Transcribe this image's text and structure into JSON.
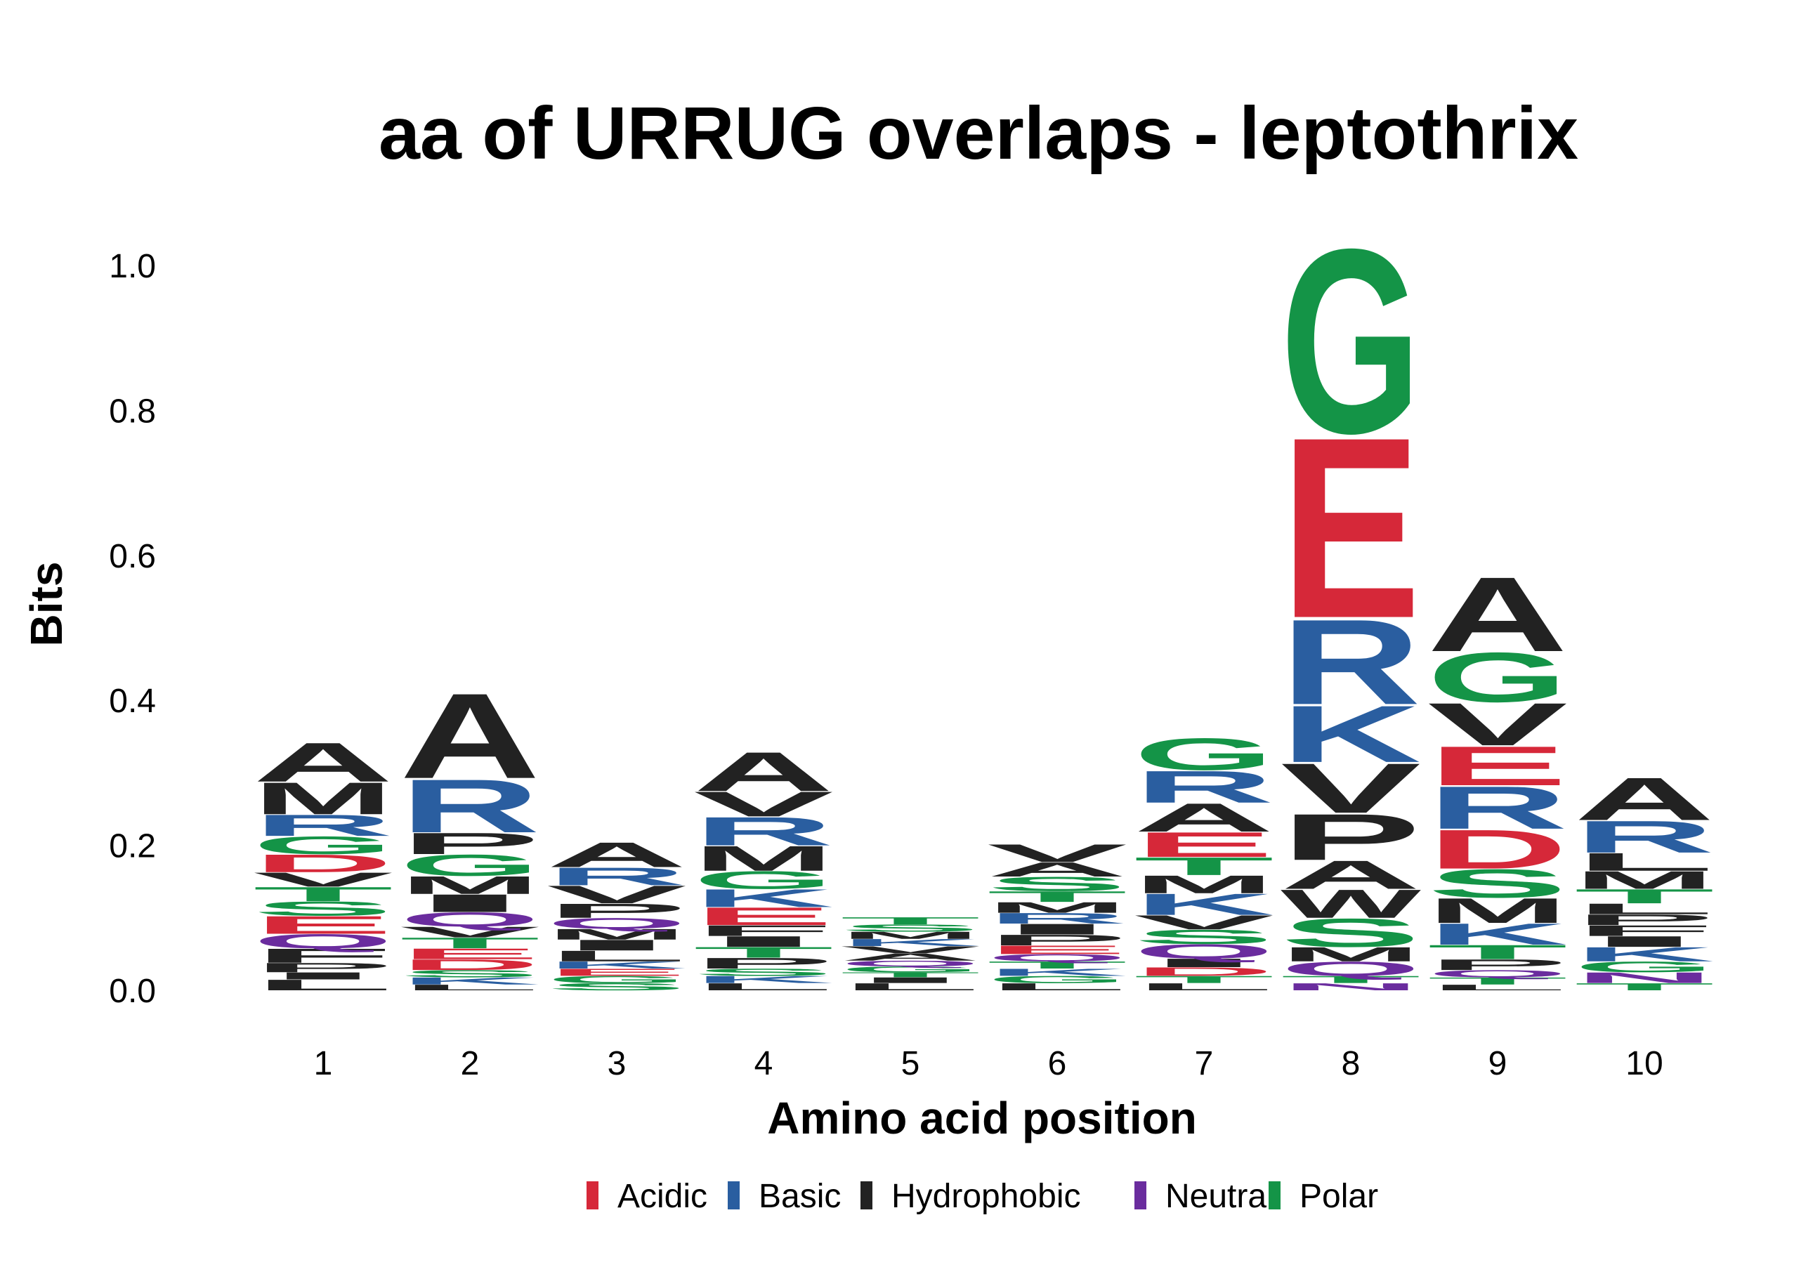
{
  "chart_data": {
    "type": "sequence-logo",
    "title": "aa of URRUG overlaps - leptothrix",
    "xlabel": "Amino acid position",
    "ylabel": "Bits",
    "ylim": [
      0,
      1.0
    ],
    "yticks": [
      "0.0",
      "0.2",
      "0.4",
      "0.6",
      "0.8",
      "1.0"
    ],
    "categories": [
      "1",
      "2",
      "3",
      "4",
      "5",
      "6",
      "7",
      "8",
      "9",
      "10"
    ],
    "legend": [
      {
        "label": "Acidic",
        "color": "#d62839"
      },
      {
        "label": "Basic",
        "color": "#2a5ea0"
      },
      {
        "label": "Hydrophobic",
        "color": "#222222"
      },
      {
        "label": "Neutral",
        "color": "#6a2c9e"
      },
      {
        "label": "Polar",
        "color": "#149447"
      }
    ],
    "classes": {
      "D": "Acidic",
      "E": "Acidic",
      "R": "Basic",
      "K": "Basic",
      "H": "Basic",
      "A": "Hydrophobic",
      "V": "Hydrophobic",
      "L": "Hydrophobic",
      "I": "Hydrophobic",
      "M": "Hydrophobic",
      "P": "Hydrophobic",
      "F": "Hydrophobic",
      "W": "Hydrophobic",
      "Q": "Neutral",
      "N": "Neutral",
      "G": "Polar",
      "S": "Polar",
      "T": "Polar",
      "Y": "Polar",
      "C": "Polar"
    },
    "positions": [
      {
        "position": 1,
        "stack": [
          [
            "L",
            0.015
          ],
          [
            "I",
            0.01
          ],
          [
            "P",
            0.013
          ],
          [
            "F",
            0.02
          ],
          [
            "Q",
            0.02
          ],
          [
            "E",
            0.025
          ],
          [
            "S",
            0.02
          ],
          [
            "T",
            0.02
          ],
          [
            "V",
            0.02
          ],
          [
            "D",
            0.025
          ],
          [
            "G",
            0.025
          ],
          [
            "R",
            0.03
          ],
          [
            "M",
            0.045
          ],
          [
            "A",
            0.055
          ]
        ]
      },
      {
        "position": 2,
        "stack": [
          [
            "L",
            0.008
          ],
          [
            "K",
            0.01
          ],
          [
            "S",
            0.01
          ],
          [
            "D",
            0.015
          ],
          [
            "E",
            0.015
          ],
          [
            "T",
            0.015
          ],
          [
            "V",
            0.015
          ],
          [
            "Q",
            0.02
          ],
          [
            "I",
            0.025
          ],
          [
            "M",
            0.025
          ],
          [
            "G",
            0.03
          ],
          [
            "P",
            0.03
          ],
          [
            "R",
            0.075
          ],
          [
            "A",
            0.12
          ]
        ]
      },
      {
        "position": 3,
        "stack": [
          [
            "S",
            0.01
          ],
          [
            "G",
            0.01
          ],
          [
            "E",
            0.01
          ],
          [
            "K",
            0.01
          ],
          [
            "L",
            0.015
          ],
          [
            "I",
            0.015
          ],
          [
            "M",
            0.015
          ],
          [
            "Q",
            0.015
          ],
          [
            "P",
            0.02
          ],
          [
            "V",
            0.025
          ],
          [
            "R",
            0.025
          ],
          [
            "A",
            0.035
          ]
        ]
      },
      {
        "position": 4,
        "stack": [
          [
            "L",
            0.01
          ],
          [
            "K",
            0.01
          ],
          [
            "S",
            0.01
          ],
          [
            "P",
            0.015
          ],
          [
            "T",
            0.015
          ],
          [
            "I",
            0.015
          ],
          [
            "F",
            0.015
          ],
          [
            "E",
            0.025
          ],
          [
            "K",
            0.025
          ],
          [
            "G",
            0.025
          ],
          [
            "M",
            0.035
          ],
          [
            "R",
            0.04
          ],
          [
            "V",
            0.035
          ],
          [
            "A",
            0.055
          ]
        ]
      },
      {
        "position": 5,
        "stack": [
          [
            "L",
            0.01
          ],
          [
            "I",
            0.008
          ],
          [
            "T",
            0.007
          ],
          [
            "G",
            0.008
          ],
          [
            "Q",
            0.008
          ],
          [
            "A",
            0.01
          ],
          [
            "V",
            0.01
          ],
          [
            "K",
            0.01
          ],
          [
            "M",
            0.01
          ],
          [
            "S",
            0.01
          ],
          [
            "T",
            0.01
          ]
        ]
      },
      {
        "position": 6,
        "stack": [
          [
            "L",
            0.01
          ],
          [
            "G",
            0.01
          ],
          [
            "K",
            0.01
          ],
          [
            "T",
            0.01
          ],
          [
            "Q",
            0.01
          ],
          [
            "E",
            0.012
          ],
          [
            "P",
            0.015
          ],
          [
            "I",
            0.015
          ],
          [
            "R",
            0.015
          ],
          [
            "M",
            0.015
          ],
          [
            "T",
            0.015
          ],
          [
            "S",
            0.02
          ],
          [
            "A",
            0.02
          ],
          [
            "V",
            0.025
          ]
        ]
      },
      {
        "position": 7,
        "stack": [
          [
            "L",
            0.01
          ],
          [
            "T",
            0.01
          ],
          [
            "D",
            0.012
          ],
          [
            "I",
            0.012
          ],
          [
            "Q",
            0.02
          ],
          [
            "S",
            0.02
          ],
          [
            "V",
            0.02
          ],
          [
            "K",
            0.03
          ],
          [
            "M",
            0.025
          ],
          [
            "T",
            0.025
          ],
          [
            "E",
            0.035
          ],
          [
            "A",
            0.04
          ],
          [
            "R",
            0.045
          ],
          [
            "G",
            0.045
          ]
        ]
      },
      {
        "position": 8,
        "stack": [
          [
            "N",
            0.01
          ],
          [
            "T",
            0.01
          ],
          [
            "Q",
            0.02
          ],
          [
            "M",
            0.02
          ],
          [
            "S",
            0.04
          ],
          [
            "W",
            0.04
          ],
          [
            "A",
            0.04
          ],
          [
            "P",
            0.065
          ],
          [
            "V",
            0.07
          ],
          [
            "K",
            0.08
          ],
          [
            "R",
            0.12
          ],
          [
            "E",
            0.255
          ],
          [
            "G",
            0.26
          ]
        ]
      },
      {
        "position": 9,
        "stack": [
          [
            "L",
            0.008
          ],
          [
            "T",
            0.01
          ],
          [
            "Q",
            0.01
          ],
          [
            "P",
            0.015
          ],
          [
            "T",
            0.02
          ],
          [
            "K",
            0.03
          ],
          [
            "M",
            0.035
          ],
          [
            "S",
            0.04
          ],
          [
            "D",
            0.055
          ],
          [
            "R",
            0.06
          ],
          [
            "E",
            0.055
          ],
          [
            "V",
            0.06
          ],
          [
            "G",
            0.07
          ],
          [
            "A",
            0.105
          ]
        ]
      },
      {
        "position": 10,
        "stack": [
          [
            "T",
            0.01
          ],
          [
            "N",
            0.015
          ],
          [
            "G",
            0.015
          ],
          [
            "K",
            0.02
          ],
          [
            "I",
            0.015
          ],
          [
            "F",
            0.015
          ],
          [
            "P",
            0.015
          ],
          [
            "L",
            0.015
          ],
          [
            "T",
            0.02
          ],
          [
            "M",
            0.025
          ],
          [
            "L",
            0.025
          ],
          [
            "R",
            0.045
          ],
          [
            "A",
            0.06
          ]
        ]
      }
    ]
  }
}
